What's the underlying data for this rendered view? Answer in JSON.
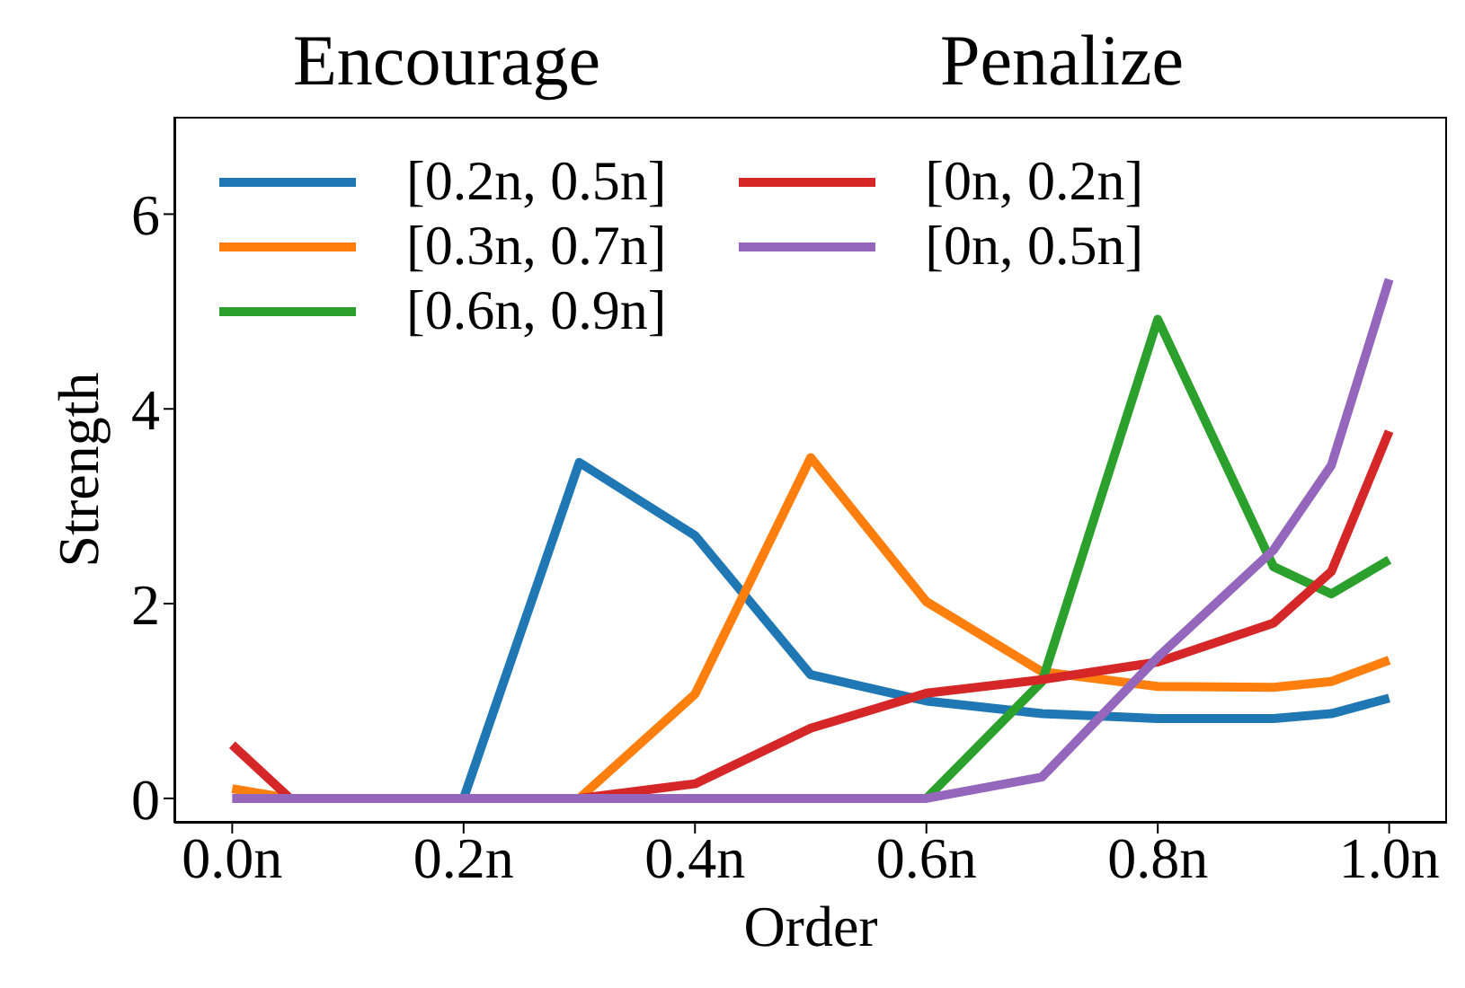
{
  "chart_data": {
    "type": "line",
    "xlabel": "Order",
    "ylabel": "Strength",
    "annotations": [
      "Encourage",
      "Penalize"
    ],
    "x": [
      0,
      0.05,
      0.1,
      0.2,
      0.3,
      0.4,
      0.5,
      0.6,
      0.7,
      0.8,
      0.9,
      0.95,
      1.0
    ],
    "series": [
      {
        "name": "[0.2n, 0.5n]",
        "color": "#1f77b4",
        "values": [
          null,
          null,
          0,
          0,
          3.45,
          2.7,
          1.27,
          1.0,
          0.87,
          0.82,
          0.82,
          0.87,
          1.03
        ]
      },
      {
        "name": "[0.3n, 0.7n]",
        "color": "#ff7f0e",
        "values": [
          0.1,
          0,
          0,
          0,
          0,
          1.07,
          3.5,
          2.02,
          1.3,
          1.15,
          1.14,
          1.2,
          1.42
        ]
      },
      {
        "name": "[0.6n, 0.9n]",
        "color": "#2ca02c",
        "values": [
          null,
          null,
          null,
          null,
          null,
          null,
          null,
          0,
          1.2,
          4.92,
          2.38,
          2.1,
          2.45
        ]
      },
      {
        "name": "[0n, 0.2n]",
        "color": "#d62728",
        "values": [
          0.55,
          0,
          0,
          0,
          0,
          0.15,
          0.72,
          1.08,
          1.22,
          1.4,
          1.8,
          2.33,
          3.77
        ]
      },
      {
        "name": "[0n, 0.5n]",
        "color": "#9467bd",
        "values": [
          0,
          0,
          0,
          0,
          0,
          0,
          0,
          0,
          0.22,
          1.45,
          2.55,
          3.42,
          5.33
        ]
      }
    ],
    "xlim": [
      -0.05,
      1.05
    ],
    "ylim": [
      -0.25,
      7
    ],
    "xticks": [
      {
        "value": 0,
        "label": "0.0n"
      },
      {
        "value": 0.2,
        "label": "0.2n"
      },
      {
        "value": 0.4,
        "label": "0.4n"
      },
      {
        "value": 0.6,
        "label": "0.6n"
      },
      {
        "value": 0.8,
        "label": "0.8n"
      },
      {
        "value": 1.0,
        "label": "1.0n"
      }
    ],
    "yticks": [
      0,
      2,
      4,
      6
    ],
    "grid": false,
    "legend": "top",
    "marker": "none",
    "line_style": "solid"
  }
}
